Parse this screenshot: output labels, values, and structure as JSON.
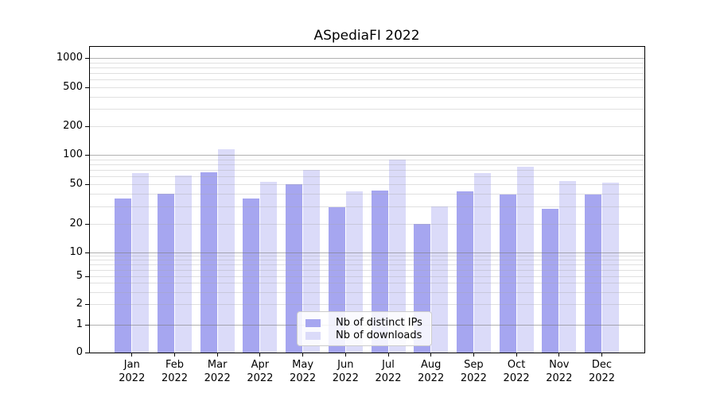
{
  "title": "ASpediaFI 2022",
  "legend": {
    "items": [
      {
        "label": "Nb of distinct IPs",
        "color": "#a6a6f0"
      },
      {
        "label": "Nb of downloads",
        "color": "#dbdbf9"
      }
    ]
  },
  "y_axis": {
    "ticks": [
      {
        "value": 0,
        "label": "0"
      },
      {
        "value": 1,
        "label": "1"
      },
      {
        "value": 2,
        "label": "2"
      },
      {
        "value": 5,
        "label": "5"
      },
      {
        "value": 10,
        "label": "10"
      },
      {
        "value": 20,
        "label": "20"
      },
      {
        "value": 50,
        "label": "50"
      },
      {
        "value": 100,
        "label": "100"
      },
      {
        "value": 200,
        "label": "200"
      },
      {
        "value": 500,
        "label": "500"
      },
      {
        "value": 1000,
        "label": "1000"
      }
    ]
  },
  "x_axis": {
    "months": [
      {
        "month": "Jan",
        "year": "2022"
      },
      {
        "month": "Feb",
        "year": "2022"
      },
      {
        "month": "Mar",
        "year": "2022"
      },
      {
        "month": "Apr",
        "year": "2022"
      },
      {
        "month": "May",
        "year": "2022"
      },
      {
        "month": "Jun",
        "year": "2022"
      },
      {
        "month": "Jul",
        "year": "2022"
      },
      {
        "month": "Aug",
        "year": "2022"
      },
      {
        "month": "Sep",
        "year": "2022"
      },
      {
        "month": "Oct",
        "year": "2022"
      },
      {
        "month": "Nov",
        "year": "2022"
      },
      {
        "month": "Dec",
        "year": "2022"
      }
    ]
  },
  "chart_data": {
    "type": "bar",
    "title": "ASpediaFI 2022",
    "categories": [
      "Jan 2022",
      "Feb 2022",
      "Mar 2022",
      "Apr 2022",
      "May 2022",
      "Jun 2022",
      "Jul 2022",
      "Aug 2022",
      "Sep 2022",
      "Oct 2022",
      "Nov 2022",
      "Dec 2022"
    ],
    "series": [
      {
        "name": "Nb of distinct IPs",
        "color": "#a6a6f0",
        "values": [
          36,
          40,
          66,
          36,
          50,
          29,
          43,
          20,
          42,
          39,
          28,
          39
        ]
      },
      {
        "name": "Nb of downloads",
        "color": "#dbdbf9",
        "values": [
          65,
          62,
          115,
          53,
          70,
          42,
          90,
          30,
          65,
          75,
          54,
          52
        ]
      }
    ],
    "xlabel": "",
    "ylabel": "",
    "yscale": "symlog",
    "y_ticks": [
      0,
      1,
      2,
      5,
      10,
      20,
      50,
      100,
      200,
      500,
      1000
    ],
    "ylim": [
      0,
      1300
    ],
    "grid": true,
    "legend_position": "lower center"
  }
}
